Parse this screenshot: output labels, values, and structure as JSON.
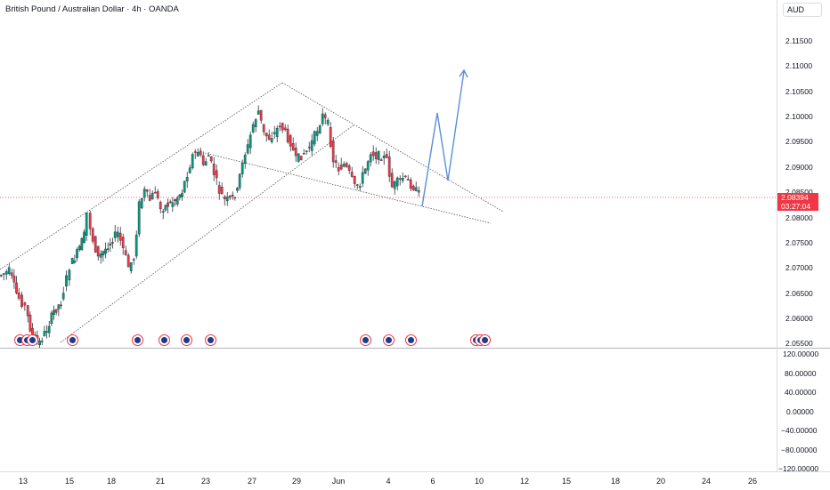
{
  "header": {
    "symbol_title": "British Pound / Australian Dollar · 4h · OANDA",
    "currency": "AUD"
  },
  "price_scale": {
    "ticks": [
      "2.11500",
      "2.11000",
      "2.10500",
      "2.10000",
      "2.09500",
      "2.09000",
      "2.08500",
      "2.08000",
      "2.07500",
      "2.07000",
      "2.06500",
      "2.06000",
      "2.05500"
    ],
    "last_price": "2.08394",
    "countdown": "03:27:04"
  },
  "oscillator_scale": {
    "ticks": [
      "120.00000",
      "80.00000",
      "40.00000",
      "0.00000",
      "−40.00000",
      "−80.00000",
      "−120.00000"
    ]
  },
  "time_axis": {
    "labels": [
      "13",
      "15",
      "18",
      "21",
      "23",
      "27",
      "29",
      "Jun",
      "4",
      "6",
      "10",
      "12",
      "15",
      "18",
      "20",
      "24",
      "26"
    ]
  },
  "colors": {
    "up": "#089981",
    "down": "#f23645",
    "projection": "#5b8fd9",
    "trendline": "#555555"
  }
}
